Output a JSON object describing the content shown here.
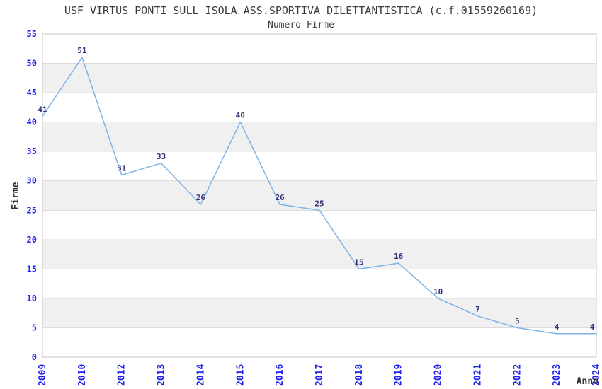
{
  "chart_data": {
    "type": "line",
    "title": "USF VIRTUS PONTI SULL ISOLA ASS.SPORTIVA DILETTANTISTICA (c.f.01559260169)",
    "subtitle": "Numero Firme",
    "xlabel": "Anno",
    "ylabel": "Firme",
    "categories": [
      "2009",
      "2010",
      "2012",
      "2013",
      "2014",
      "2015",
      "2016",
      "2017",
      "2018",
      "2019",
      "2020",
      "2021",
      "2022",
      "2023",
      "2024"
    ],
    "values": [
      41,
      51,
      31,
      33,
      26,
      40,
      26,
      25,
      15,
      16,
      10,
      7,
      5,
      4,
      4
    ],
    "ylim": [
      0,
      55
    ],
    "ytick_step": 5,
    "yticks": [
      0,
      5,
      10,
      15,
      20,
      25,
      30,
      35,
      40,
      45,
      50,
      55
    ],
    "grid": "horizontal-gridlines-with-alternating-bands",
    "legend": "none",
    "data_labels_shown": true,
    "colors": {
      "line": "#7fb2e8",
      "tick_label": "#2222ee",
      "data_label": "#333377",
      "band": "#f0f0f0",
      "gridline": "#dcdcdc",
      "plot_border": "#c6c6c6",
      "axis_title": "#333333",
      "title_text": "#3c3c3c",
      "background": "#ffffff"
    }
  }
}
